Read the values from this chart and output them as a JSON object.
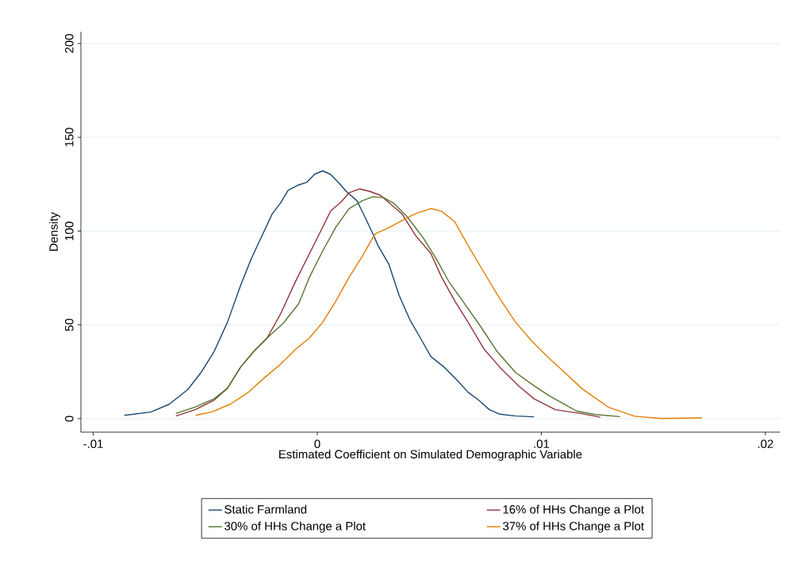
{
  "chart_data": {
    "type": "line",
    "xlabel": "Estimated Coefficient on Simulated Demographic Variable",
    "ylabel": "Density",
    "xlim": [
      -0.01055,
      0.02064
    ],
    "ylim": [
      -7.2,
      206.3
    ],
    "xticks": [
      {
        "value": -0.01,
        "label": "-.01"
      },
      {
        "value": 0,
        "label": "0"
      },
      {
        "value": 0.01,
        "label": ".01"
      },
      {
        "value": 0.02,
        "label": ".02"
      }
    ],
    "yticks": [
      0,
      50,
      100,
      150,
      200
    ],
    "grid": "y",
    "legend": "bottom",
    "marker": "none",
    "line_style": "solid",
    "series": [
      {
        "name": "Static Farmland",
        "color": "#1a476f",
        "x": [
          -0.00861,
          -0.00743,
          -0.00661,
          -0.00578,
          -0.00519,
          -0.0046,
          -0.00401,
          -0.00342,
          -0.00295,
          -0.00248,
          -0.00201,
          -0.00165,
          -0.0013,
          -0.00083,
          -0.00047,
          -0.00012,
          0.00024,
          0.00059,
          0.00094,
          0.0013,
          0.00177,
          0.00212,
          0.00248,
          0.00271,
          0.00319,
          0.00366,
          0.00413,
          0.0046,
          0.00507,
          0.00566,
          0.00625,
          0.00673,
          0.0072,
          0.00767,
          0.00814,
          0.00885,
          0.00967
        ],
        "values": [
          1.8,
          3.5,
          7.7,
          15.5,
          24.6,
          35.9,
          51.4,
          71.1,
          85.2,
          97.2,
          109.2,
          114.8,
          121.8,
          124.6,
          126,
          130.3,
          132.1,
          130.3,
          126,
          121.1,
          116.2,
          107.7,
          98.6,
          92.3,
          82.4,
          65.5,
          52.8,
          43,
          33.1,
          27.5,
          20.4,
          14.1,
          9.9,
          4.9,
          2.4,
          1.4,
          1.0
        ]
      },
      {
        "name": "16% of HHs Change a Plot",
        "color": "#90353b",
        "x": [
          -0.00631,
          -0.00543,
          -0.0046,
          -0.00401,
          -0.00342,
          -0.00283,
          -0.00224,
          -0.00165,
          -0.00094,
          -0.00035,
          0.00024,
          0.00059,
          0.00106,
          0.00142,
          0.00189,
          0.00236,
          0.00283,
          0.0033,
          0.00378,
          0.00437,
          0.00507,
          0.00555,
          0.00614,
          0.00673,
          0.00743,
          0.00814,
          0.00897,
          0.00967,
          0.01038,
          0.01062,
          0.0118,
          0.01263
        ],
        "values": [
          1.4,
          4.9,
          9.9,
          16.2,
          27.5,
          35.9,
          43,
          55.6,
          73.9,
          88,
          102.1,
          110.6,
          115.5,
          120.4,
          122.5,
          121.1,
          119,
          114.1,
          109.2,
          97.9,
          88,
          75.4,
          62.7,
          51.4,
          37.3,
          27.5,
          17.6,
          10.6,
          6.3,
          4.8,
          2.7,
          0.8
        ]
      },
      {
        "name": "30% of HHs Change a Plot",
        "color": "#55752f",
        "x": [
          -0.00631,
          -0.00543,
          -0.0046,
          -0.00401,
          -0.00342,
          -0.00283,
          -0.00212,
          -0.00153,
          -0.00083,
          -0.00035,
          0.00024,
          0.00083,
          0.00142,
          0.00201,
          0.00248,
          0.00295,
          0.00342,
          0.00401,
          0.00472,
          0.00531,
          0.0059,
          0.00649,
          0.00732,
          0.00802,
          0.00885,
          0.00967,
          0.01038,
          0.01091,
          0.01156,
          0.01239,
          0.01351
        ],
        "values": [
          2.8,
          6.3,
          10.6,
          16.2,
          27.5,
          35.9,
          44.4,
          50.7,
          61.3,
          75.4,
          89.4,
          102.1,
          112,
          116.2,
          118.3,
          117.9,
          114.8,
          107.7,
          96.5,
          85.2,
          72.5,
          62.7,
          48.6,
          35.9,
          24.6,
          17.6,
          12,
          8.5,
          4.1,
          2.2,
          1.1
        ]
      },
      {
        "name": "37% of HHs Change a Plot",
        "color": "#e37e00",
        "x": [
          -0.00543,
          -0.00472,
          -0.00389,
          -0.00307,
          -0.00236,
          -0.00165,
          -0.00094,
          -0.00035,
          0.00024,
          0.00083,
          0.00142,
          0.00201,
          0.00248,
          0.0026,
          0.00319,
          0.00378,
          0.00437,
          0.00507,
          0.00555,
          0.00614,
          0.00673,
          0.00743,
          0.00814,
          0.00885,
          0.00956,
          0.01027,
          0.01091,
          0.0118,
          0.01298,
          0.01416,
          0.01534,
          0.01717
        ],
        "values": [
          1.8,
          3.5,
          7.7,
          14.1,
          21.8,
          28.9,
          37.3,
          43,
          51.4,
          62.7,
          75.4,
          86.6,
          96.5,
          98.6,
          101.8,
          105.6,
          109.2,
          112,
          110.6,
          104.9,
          92.3,
          78.2,
          64.1,
          51.4,
          41.5,
          33.1,
          26.1,
          16.1,
          6.2,
          1.3,
          0.1,
          0.4
        ]
      }
    ]
  }
}
